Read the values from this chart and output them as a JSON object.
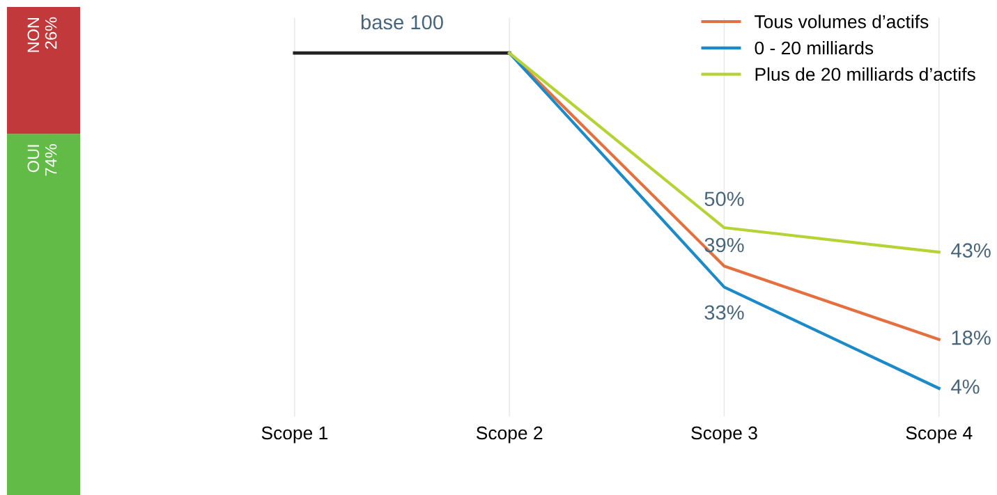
{
  "chart_data": [
    {
      "type": "bar",
      "stacked": true,
      "categories": [
        null
      ],
      "tick_labels": false,
      "series": [
        {
          "name": "OUI",
          "color": "#62bb46",
          "values": [
            74
          ],
          "value_labels": [
            "74%"
          ]
        },
        {
          "name": "NON",
          "color": "#c1393b",
          "values": [
            26
          ],
          "value_labels": [
            "26%"
          ]
        }
      ]
    },
    {
      "type": "line",
      "categories": [
        "Scope 1",
        "Scope 2",
        "Scope 3",
        "Scope 4"
      ],
      "ylim": [
        -4,
        110
      ],
      "tick_labels": "x",
      "grid": "x",
      "legend": "top right",
      "marker": "none",
      "line_style": "solid",
      "series": [
        {
          "name": "base 100",
          "color": "#222222",
          "values": [
            100,
            100,
            null,
            null
          ]
        },
        {
          "name": "Tous volumes d’actifs",
          "color": "#e5703f",
          "values": [
            null,
            100,
            39,
            18
          ],
          "value_labels": [
            null,
            null,
            "39%",
            "18%"
          ]
        },
        {
          "name": "0 - 20 milliards",
          "color": "#1b8ac8",
          "values": [
            null,
            100,
            33,
            4
          ],
          "value_labels": [
            null,
            null,
            "33%",
            "4%"
          ]
        },
        {
          "name": "Plus de 20 milliards d’actifs",
          "color": "#b5d334",
          "values": [
            null,
            100,
            50,
            43
          ],
          "value_labels": [
            null,
            null,
            "50%",
            "43%"
          ]
        }
      ]
    }
  ]
}
